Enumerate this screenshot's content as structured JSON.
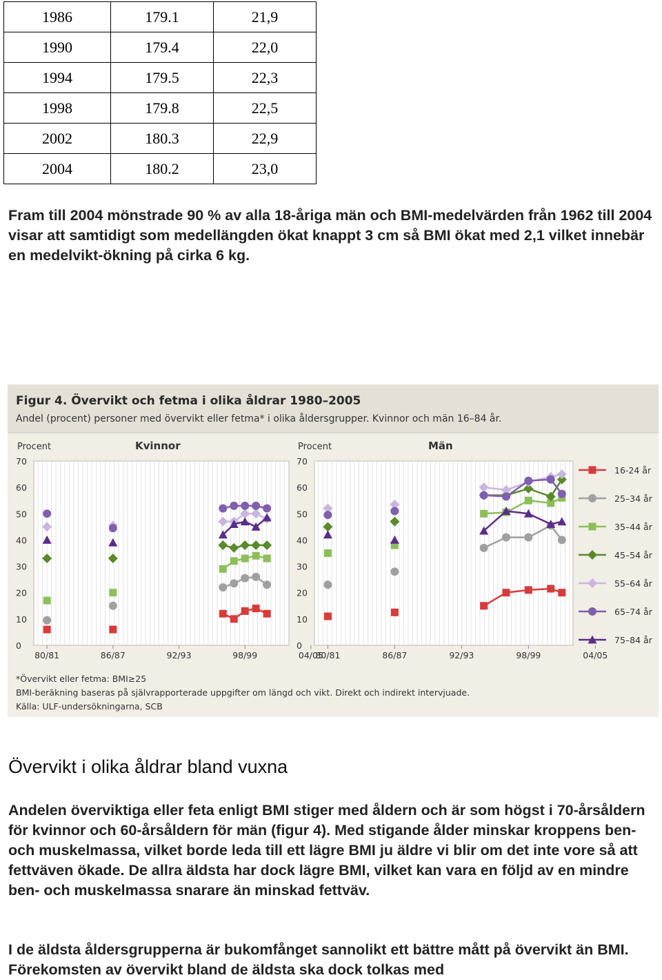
{
  "table": {
    "rows": [
      [
        "1986",
        "179.1",
        "21,9"
      ],
      [
        "1990",
        "179.4",
        "22,0"
      ],
      [
        "1994",
        "179.5",
        "22,3"
      ],
      [
        "1998",
        "179.8",
        "22,5"
      ],
      [
        "2002",
        "180.3",
        "22,9"
      ],
      [
        "2004",
        "180.2",
        "23,0"
      ]
    ]
  },
  "paragraph1": "Fram till 2004 mönstrade 90 % av alla 18-åriga män och BMI-medelvärden från 1962 till 2004 visar att samtidigt som medellängden ökat knappt 3 cm så BMI ökat med 2,1 vilket innebär en medelvikt-ökning på cirka 6 kg.",
  "figure": {
    "title": "Figur 4. Övervikt och fetma i olika åldrar 1980–2005",
    "subtitle": "Andel (procent) personer med övervikt eller fetma* i olika åldersgrupper. Kvinnor och män 16–84 år.",
    "footnote1": "*Övervikt eller fetma: BMI≥25",
    "footnote2": "BMI-beräkning baseras på självrapporterade uppgifter om längd och vikt. Direkt och indirekt intervjuade.",
    "source": "Källa: ULF-undersökningarna, SCB"
  },
  "chart_data": {
    "type": "line",
    "ylabel": "Procent",
    "ylim": [
      0,
      70
    ],
    "yticks": [
      0,
      10,
      20,
      30,
      40,
      50,
      60,
      70
    ],
    "x_labels": [
      "80/81",
      "86/87",
      "92/93",
      "98/99",
      "04/05"
    ],
    "series_styles": [
      {
        "name": "16-24 år",
        "color": "#d93a3a",
        "marker": "square"
      },
      {
        "name": "25–34 år",
        "color": "#a0a0a0",
        "marker": "circle"
      },
      {
        "name": "35–44 år",
        "color": "#8cbf5a",
        "marker": "square"
      },
      {
        "name": "45–54 år",
        "color": "#5a8a2a",
        "marker": "diamond"
      },
      {
        "name": "55–64 år",
        "color": "#c9b6e0",
        "marker": "diamond"
      },
      {
        "name": "65–74 år",
        "color": "#7f5fae",
        "marker": "circle"
      },
      {
        "name": "75–84 år",
        "color": "#5b2d8a",
        "marker": "triangle"
      }
    ],
    "panels": [
      {
        "title": "Kvinnor",
        "x": [
          1980.5,
          1986.5,
          1996.5,
          1997.5,
          1998.5,
          1999.5,
          2000.5,
          2001.5
        ],
        "series": [
          {
            "name": "16-24 år",
            "values": [
              6,
              6,
              12,
              10,
              13,
              14,
              12,
              null
            ],
            "solo": [
              0,
              1
            ]
          },
          {
            "name": "25–34 år",
            "values": [
              9.5,
              15,
              22,
              23.5,
              25.5,
              26,
              23,
              null
            ],
            "solo": [
              0,
              1
            ]
          },
          {
            "name": "35–44 år",
            "values": [
              17,
              20,
              29,
              32,
              33,
              34,
              33,
              null
            ],
            "solo": [
              0,
              1
            ]
          },
          {
            "name": "45–54 år",
            "values": [
              33,
              33,
              38,
              37,
              38,
              38,
              38,
              null
            ],
            "solo": [
              0,
              1
            ]
          },
          {
            "name": "55–64 år",
            "values": [
              45,
              45.5,
              47,
              47,
              50,
              50,
              48,
              null
            ],
            "solo": [
              0,
              1
            ]
          },
          {
            "name": "65–74 år",
            "values": [
              50,
              44.5,
              52,
              53,
              53,
              53,
              52,
              null
            ],
            "solo": [
              0,
              1
            ]
          },
          {
            "name": "75–84 år",
            "values": [
              40,
              39,
              42,
              46,
              47,
              45,
              48.5,
              null
            ],
            "solo": [
              0,
              1
            ]
          }
        ]
      },
      {
        "title": "Män",
        "x": [
          1980.5,
          1986.5,
          1994.5,
          1996.5,
          1998.5,
          2000.5,
          2001.5
        ],
        "series": [
          {
            "name": "16-24 år",
            "values": [
              11,
              12.5,
              15,
              20,
              21,
              21.5,
              20
            ],
            "solo": [
              0,
              1
            ]
          },
          {
            "name": "25–34 år",
            "values": [
              23,
              28,
              37,
              41,
              41,
              45.5,
              40
            ],
            "solo": [
              0,
              1
            ]
          },
          {
            "name": "35–44 år",
            "values": [
              35,
              38,
              50,
              50.5,
              55,
              54,
              56
            ],
            "solo": [
              0,
              1
            ]
          },
          {
            "name": "45–54 år",
            "values": [
              45,
              47,
              57,
              57,
              59.5,
              56.5,
              63
            ],
            "solo": [
              0,
              1
            ]
          },
          {
            "name": "55–64 år",
            "values": [
              52,
              53.5,
              60,
              59,
              62,
              64,
              65
            ],
            "solo": [
              0,
              1
            ]
          },
          {
            "name": "65–74 år",
            "values": [
              49.5,
              51,
              57,
              56.5,
              62.5,
              63,
              57.5
            ],
            "solo": [
              0,
              1
            ]
          },
          {
            "name": "75–84 år",
            "values": [
              42,
              40,
              43.5,
              51,
              50,
              46,
              47
            ],
            "solo": [
              0,
              1
            ]
          }
        ]
      }
    ],
    "legend_position": "right"
  },
  "section": {
    "heading": "Övervikt i olika åldrar bland vuxna",
    "paragraph2": "Andelen överviktiga eller feta enligt BMI stiger med åldern och är som högst i 70-årsåldern för kvinnor och 60-årsåldern för män (figur 4). Med stigande ålder minskar kroppens ben- och muskelmassa, vilket borde leda till ett lägre BMI ju äldre vi blir om det inte vore så att fettväven ökade. De allra äldsta har dock lägre BMI, vilket kan vara en följd av en mindre ben- och muskelmassa snarare än minskad fettväv.",
    "paragraph3": "I de äldsta åldersgrupperna är bukomfånget sannolikt ett bättre mått på övervikt än BMI. Förekomsten av övervikt bland de äldsta ska dock tolkas med"
  }
}
